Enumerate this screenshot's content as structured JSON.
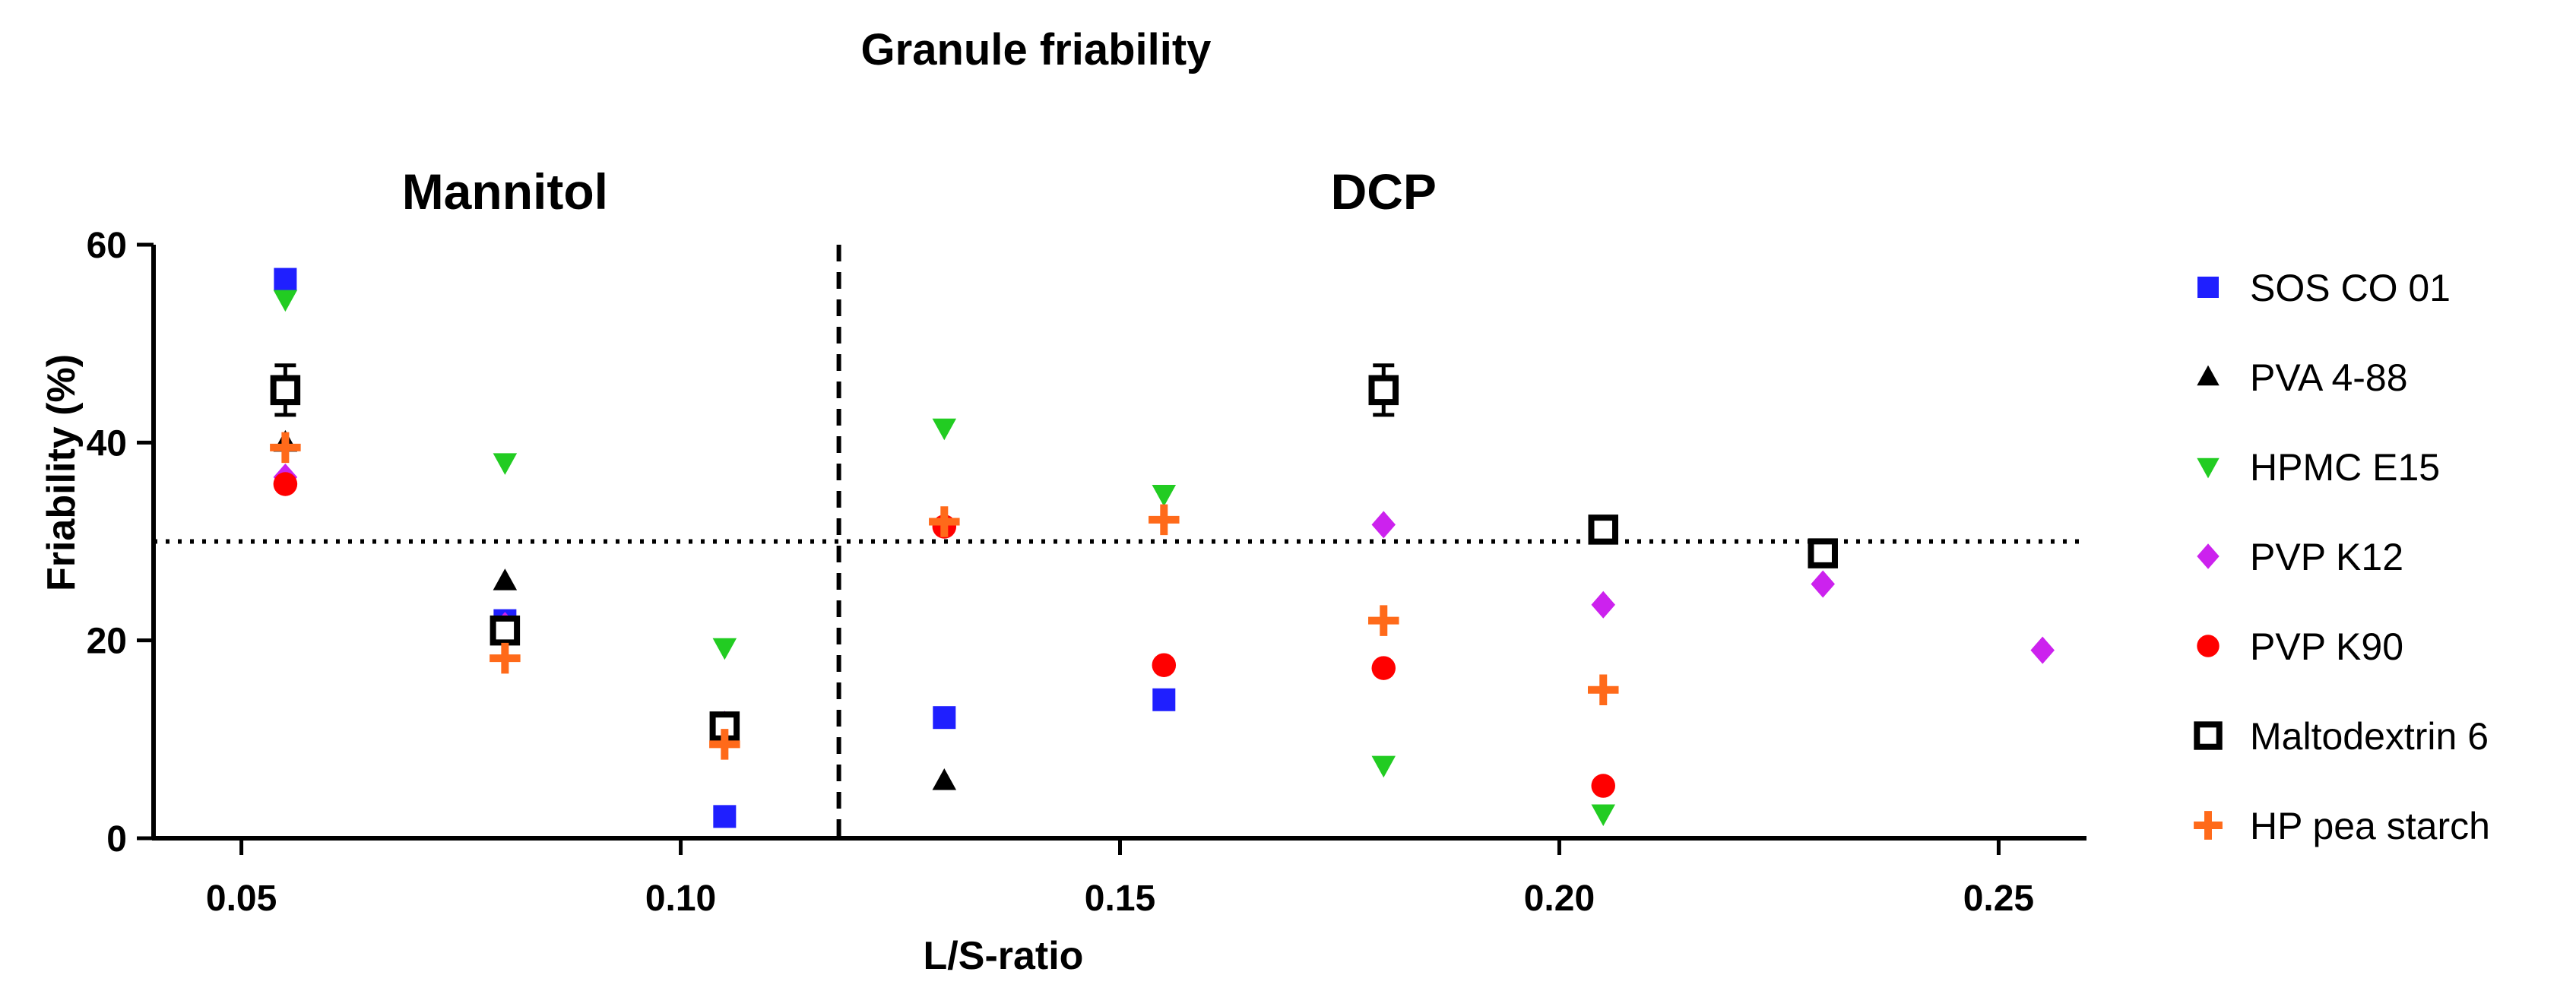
{
  "chart_data": {
    "type": "scatter",
    "title": "Granule friability",
    "xlabel": "L/S-ratio",
    "ylabel": "Friability (%)",
    "xlim": [
      0.04,
      0.26
    ],
    "ylim": [
      0,
      60
    ],
    "xticks": [
      0.05,
      0.1,
      0.15,
      0.2,
      0.25
    ],
    "xtick_labels": [
      "0.05",
      "0.10",
      "0.15",
      "0.20",
      "0.25"
    ],
    "yticks": [
      0,
      20,
      40,
      60
    ],
    "ytick_labels": [
      "0",
      "20",
      "40",
      "60"
    ],
    "legend_position": "right",
    "regions": [
      {
        "label": "Mannitol",
        "x_center": 0.08
      },
      {
        "label": "DCP",
        "x_center": 0.18
      }
    ],
    "reference_lines": [
      {
        "orientation": "vertical",
        "value": 0.118,
        "style": "dashed"
      },
      {
        "orientation": "horizontal",
        "value": 30,
        "style": "dotted"
      }
    ],
    "series": [
      {
        "name": "SOS CO 01",
        "marker": "square",
        "color": "#1f1fff",
        "points": [
          [
            0.055,
            56.5
          ],
          [
            0.08,
            22
          ],
          [
            0.105,
            2.2
          ],
          [
            0.13,
            12.2
          ],
          [
            0.155,
            14
          ]
        ]
      },
      {
        "name": "PVA 4-88",
        "marker": "triangle-up",
        "color": "#000000",
        "points": [
          [
            0.055,
            40
          ],
          [
            0.08,
            26
          ],
          [
            0.105,
            11.5
          ],
          [
            0.13,
            5.8
          ]
        ]
      },
      {
        "name": "HPMC E15",
        "marker": "triangle-down",
        "color": "#22cc22",
        "points": [
          [
            0.055,
            54.5
          ],
          [
            0.08,
            38
          ],
          [
            0.105,
            19.3
          ],
          [
            0.13,
            41.5
          ],
          [
            0.155,
            34.8
          ],
          [
            0.18,
            7.4
          ],
          [
            0.205,
            2.5
          ]
        ]
      },
      {
        "name": "PVP K12",
        "marker": "diamond",
        "color": "#cc22ee",
        "points": [
          [
            0.055,
            36.5
          ],
          [
            0.08,
            21.5
          ],
          [
            0.105,
            11.5
          ],
          [
            0.18,
            31.7
          ],
          [
            0.205,
            23.6
          ],
          [
            0.23,
            25.7
          ],
          [
            0.255,
            19
          ]
        ]
      },
      {
        "name": "PVP K90",
        "marker": "circle",
        "color": "#ff0000",
        "points": [
          [
            0.055,
            35.8
          ],
          [
            0.08,
            21.3
          ],
          [
            0.105,
            10.5
          ],
          [
            0.13,
            31.5
          ],
          [
            0.155,
            17.5
          ],
          [
            0.18,
            17.2
          ],
          [
            0.205,
            5.3
          ]
        ]
      },
      {
        "name": "Maltodextrin 6",
        "marker": "open-square",
        "color": "#000000",
        "points": [
          [
            0.055,
            45.3
          ],
          [
            0.08,
            21
          ],
          [
            0.105,
            11.3
          ],
          [
            0.18,
            45.3
          ],
          [
            0.205,
            31.2
          ],
          [
            0.23,
            28.8
          ]
        ],
        "error": [
          2.5,
          1,
          1,
          2.5,
          1,
          1
        ]
      },
      {
        "name": "HP pea starch",
        "marker": "plus",
        "color": "#ff6a1a",
        "points": [
          [
            0.055,
            39.5
          ],
          [
            0.08,
            18.2
          ],
          [
            0.105,
            9.5
          ],
          [
            0.13,
            32
          ],
          [
            0.155,
            32.2
          ],
          [
            0.18,
            22
          ],
          [
            0.205,
            15
          ]
        ]
      }
    ]
  }
}
